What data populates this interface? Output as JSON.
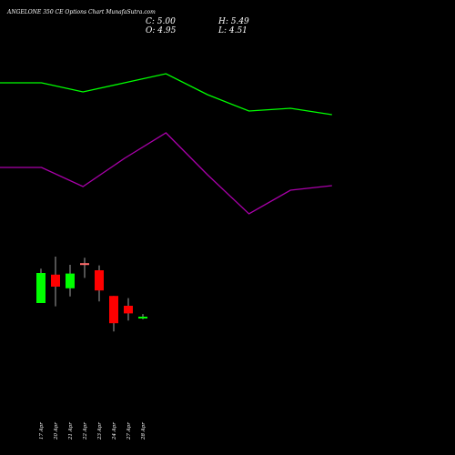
{
  "chart_data": {
    "type": "candlestick",
    "title": "ANGELONE 350  CE Options  Chart MunafaSutra.com",
    "ohlc_readout": {
      "close": "C: 5.00",
      "high": "H: 5.49",
      "open": "O: 4.95",
      "low": "L: 4.51"
    },
    "candles": [
      {
        "label": "17 Apr",
        "open": 7.5,
        "high": 13.8,
        "low": 7.5,
        "close": 13.0,
        "color": "#00ff00"
      },
      {
        "label": "20 Apr",
        "open": 12.7,
        "high": 16.0,
        "low": 6.9,
        "close": 10.5,
        "color": "#ff0000"
      },
      {
        "label": "21 Apr",
        "open": 10.2,
        "high": 14.5,
        "low": 8.7,
        "close": 12.9,
        "color": "#00ff00"
      },
      {
        "label": "22 Apr",
        "open": 14.8,
        "high": 15.8,
        "low": 12.1,
        "close": 14.5,
        "color": "#ff6a6a"
      },
      {
        "label": "23 Apr",
        "open": 13.5,
        "high": 14.4,
        "low": 7.8,
        "close": 9.8,
        "color": "#ff0000"
      },
      {
        "label": "24 Apr",
        "open": 8.8,
        "high": 8.8,
        "low": 2.3,
        "close": 3.8,
        "color": "#ff0000"
      },
      {
        "label": "27 Apr",
        "open": 7.0,
        "high": 8.4,
        "low": 4.3,
        "close": 5.6,
        "color": "#ff0000"
      },
      {
        "label": "28 Apr",
        "open": 4.95,
        "high": 5.49,
        "low": 4.51,
        "close": 5.0,
        "color": "#00ff00"
      }
    ],
    "bands": [
      {
        "color": "#00ff00",
        "values": [
          91,
          91,
          101,
          91,
          81,
          104,
          122,
          119,
          126
        ]
      },
      {
        "color": "#aa00aa",
        "values": [
          184,
          184,
          205,
          174,
          146,
          192,
          235,
          209,
          204
        ]
      }
    ],
    "ylim": [
      0,
      20
    ],
    "grid": false,
    "legend": "none"
  },
  "colors": {
    "background": "#000000",
    "text": "#ffffff",
    "up": "#00ff00",
    "down": "#ff0000"
  }
}
